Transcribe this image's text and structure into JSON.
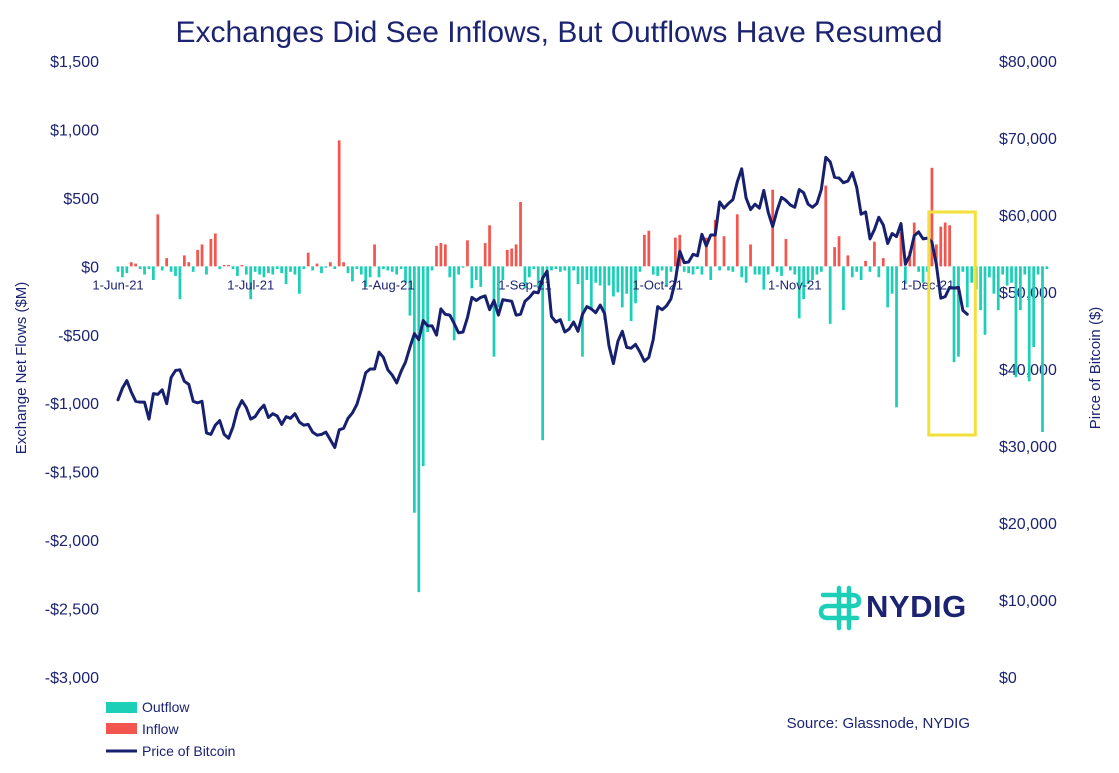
{
  "chart_data": {
    "type": "bar",
    "title": "Exchanges Did See Inflows, But Outflows Have Resumed",
    "left_axis": {
      "label": "Exchange Net Flows ($M)",
      "range": [
        -3000,
        1500
      ],
      "ticks": [
        {
          "value": 1500,
          "label": "$1,500"
        },
        {
          "value": 1000,
          "label": "$1,000"
        },
        {
          "value": 500,
          "label": "$500"
        },
        {
          "value": 0,
          "label": "$0"
        },
        {
          "value": -500,
          "label": "-$500"
        },
        {
          "value": -1000,
          "label": "-$1,000"
        },
        {
          "value": -1500,
          "label": "-$1,500"
        },
        {
          "value": -2000,
          "label": "-$2,000"
        },
        {
          "value": -2500,
          "label": "-$2,500"
        },
        {
          "value": -3000,
          "label": "-$3,000"
        }
      ]
    },
    "right_axis": {
      "label": "Pirce of Bitcoin ($)",
      "range": [
        0,
        80000
      ],
      "ticks": [
        {
          "value": 80000,
          "label": "$80,000"
        },
        {
          "value": 70000,
          "label": "$70,000"
        },
        {
          "value": 60000,
          "label": "$60,000"
        },
        {
          "value": 50000,
          "label": "$50,000"
        },
        {
          "value": 40000,
          "label": "$40,000"
        },
        {
          "value": 30000,
          "label": "$30,000"
        },
        {
          "value": 20000,
          "label": "$20,000"
        },
        {
          "value": 10000,
          "label": "$10,000"
        },
        {
          "value": 0,
          "label": "$0"
        }
      ]
    },
    "x_axis": {
      "start_date": "2021-06-01",
      "end_date": "2021-12-14",
      "ticks": [
        {
          "date": "2021-06-01",
          "label": "1-Jun-21"
        },
        {
          "date": "2021-07-01",
          "label": "1-Jul-21"
        },
        {
          "date": "2021-08-01",
          "label": "1-Aug-21"
        },
        {
          "date": "2021-09-01",
          "label": "1-Sep-21"
        },
        {
          "date": "2021-10-01",
          "label": "1-Oct-21"
        },
        {
          "date": "2021-11-01",
          "label": "1-Nov-21"
        },
        {
          "date": "2021-12-01",
          "label": "1-Dec-21"
        }
      ]
    },
    "flows_start_date": "2021-06-01",
    "net_flows": [
      -40,
      -80,
      -50,
      30,
      20,
      -20,
      -60,
      -20,
      -100,
      380,
      -30,
      60,
      -40,
      -70,
      -240,
      80,
      30,
      -40,
      120,
      160,
      -60,
      200,
      240,
      -20,
      10,
      10,
      -20,
      -70,
      10,
      -60,
      -240,
      -40,
      -60,
      -80,
      -50,
      -60,
      -20,
      -50,
      -130,
      -40,
      -60,
      -200,
      -20,
      100,
      -30,
      20,
      -50,
      -10,
      30,
      -20,
      920,
      30,
      -50,
      -110,
      -20,
      -60,
      -150,
      -80,
      160,
      -80,
      -20,
      -30,
      -40,
      -60,
      -20,
      -120,
      -360,
      -1800,
      -2380,
      -1460,
      -480,
      -30,
      150,
      170,
      160,
      -80,
      -540,
      -60,
      -10,
      190,
      -160,
      -100,
      -150,
      170,
      300,
      -660,
      -300,
      -100,
      120,
      130,
      160,
      470,
      -160,
      -80,
      -20,
      -160,
      -1270,
      -100,
      -30,
      -20,
      -40,
      -30,
      -400,
      -30,
      -130,
      -660,
      -100,
      -320,
      -120,
      -140,
      -390,
      -140,
      -220,
      -190,
      -300,
      -200,
      -400,
      -270,
      -40,
      -80,
      -70,
      -60,
      -70,
      -30,
      -100,
      -40,
      210,
      230,
      -40,
      -50,
      -60,
      -20,
      -60,
      -90,
      -100,
      -60,
      -30,
      -80,
      -30,
      -40,
      -30,
      -80,
      -120,
      -20,
      -60,
      -60,
      -170,
      -60,
      -80,
      -40,
      -70,
      -100,
      -30,
      -60,
      -380,
      -240,
      -130,
      -100,
      -60,
      -40,
      -80,
      -420,
      -120,
      -60,
      -320,
      -160,
      -80,
      -40,
      -100,
      -150,
      -40,
      -180,
      -80,
      -280,
      -300,
      -200,
      -1030,
      -80,
      -130,
      -100,
      -300,
      -40,
      -120,
      -40,
      -60,
      -40,
      -180,
      -150,
      -120,
      -700,
      -660,
      -40,
      -300,
      -120,
      -170,
      -320,
      -500,
      -80,
      -200,
      -320,
      -60,
      -140,
      -120,
      -810,
      -320,
      -60,
      -840,
      -590,
      -60,
      -1210,
      -20
    ],
    "flow_overrides": [
      {
        "date": "2021-09-28",
        "value": 230
      },
      {
        "date": "2021-09-29",
        "value": 260
      },
      {
        "date": "2021-10-03",
        "value": -140
      },
      {
        "date": "2021-10-12",
        "value": 210
      },
      {
        "date": "2021-10-14",
        "value": 340
      },
      {
        "date": "2021-10-16",
        "value": 220
      },
      {
        "date": "2021-10-19",
        "value": 380
      },
      {
        "date": "2021-10-22",
        "value": 160
      },
      {
        "date": "2021-10-27",
        "value": 560
      },
      {
        "date": "2021-10-30",
        "value": 200
      },
      {
        "date": "2021-11-08",
        "value": 590
      },
      {
        "date": "2021-11-10",
        "value": 140
      },
      {
        "date": "2021-11-11",
        "value": 220
      },
      {
        "date": "2021-11-13",
        "value": 80
      },
      {
        "date": "2021-11-17",
        "value": 40
      },
      {
        "date": "2021-11-19",
        "value": 180
      },
      {
        "date": "2021-11-21",
        "value": 60
      },
      {
        "date": "2021-11-25",
        "value": 250
      },
      {
        "date": "2021-11-27",
        "value": 110
      },
      {
        "date": "2021-11-28",
        "value": 320
      },
      {
        "date": "2021-12-02",
        "value": 720
      },
      {
        "date": "2021-12-03",
        "value": 160
      },
      {
        "date": "2021-12-04",
        "value": 290
      },
      {
        "date": "2021-12-05",
        "value": 320
      },
      {
        "date": "2021-12-06",
        "value": 300
      }
    ],
    "price": [
      [
        "2021-06-01",
        36000
      ],
      [
        "2021-06-02",
        37500
      ],
      [
        "2021-06-03",
        38500
      ],
      [
        "2021-06-04",
        37000
      ],
      [
        "2021-06-05",
        35800
      ],
      [
        "2021-06-06",
        35700
      ],
      [
        "2021-06-07",
        35700
      ],
      [
        "2021-06-08",
        33500
      ],
      [
        "2021-06-09",
        36800
      ],
      [
        "2021-06-10",
        36700
      ],
      [
        "2021-06-11",
        37300
      ],
      [
        "2021-06-12",
        35500
      ],
      [
        "2021-06-13",
        38900
      ],
      [
        "2021-06-14",
        39800
      ],
      [
        "2021-06-15",
        39900
      ],
      [
        "2021-06-16",
        38400
      ],
      [
        "2021-06-17",
        38000
      ],
      [
        "2021-06-18",
        35800
      ],
      [
        "2021-06-19",
        35600
      ],
      [
        "2021-06-20",
        35800
      ],
      [
        "2021-06-21",
        31700
      ],
      [
        "2021-06-22",
        31500
      ],
      [
        "2021-06-23",
        32700
      ],
      [
        "2021-06-24",
        33300
      ],
      [
        "2021-06-25",
        31500
      ],
      [
        "2021-06-26",
        31000
      ],
      [
        "2021-06-27",
        32500
      ],
      [
        "2021-06-28",
        34700
      ],
      [
        "2021-06-29",
        35900
      ],
      [
        "2021-06-30",
        35000
      ],
      [
        "2021-07-01",
        33500
      ],
      [
        "2021-07-02",
        33800
      ],
      [
        "2021-07-03",
        34700
      ],
      [
        "2021-07-04",
        35300
      ],
      [
        "2021-07-05",
        33700
      ],
      [
        "2021-07-06",
        34200
      ],
      [
        "2021-07-07",
        33900
      ],
      [
        "2021-07-08",
        32800
      ],
      [
        "2021-07-09",
        33800
      ],
      [
        "2021-07-10",
        33600
      ],
      [
        "2021-07-11",
        34200
      ],
      [
        "2021-07-12",
        33100
      ],
      [
        "2021-07-13",
        32700
      ],
      [
        "2021-07-14",
        32800
      ],
      [
        "2021-07-15",
        31800
      ],
      [
        "2021-07-16",
        31400
      ],
      [
        "2021-07-17",
        31500
      ],
      [
        "2021-07-18",
        31800
      ],
      [
        "2021-07-19",
        30800
      ],
      [
        "2021-07-20",
        29800
      ],
      [
        "2021-07-21",
        32100
      ],
      [
        "2021-07-22",
        32300
      ],
      [
        "2021-07-23",
        33600
      ],
      [
        "2021-07-24",
        34300
      ],
      [
        "2021-07-25",
        35400
      ],
      [
        "2021-07-26",
        37300
      ],
      [
        "2021-07-27",
        39500
      ],
      [
        "2021-07-28",
        40000
      ],
      [
        "2021-07-29",
        40000
      ],
      [
        "2021-07-30",
        42200
      ],
      [
        "2021-07-31",
        41500
      ],
      [
        "2021-08-01",
        39900
      ],
      [
        "2021-08-02",
        39200
      ],
      [
        "2021-08-03",
        38200
      ],
      [
        "2021-08-04",
        39700
      ],
      [
        "2021-08-05",
        40900
      ],
      [
        "2021-08-06",
        42800
      ],
      [
        "2021-08-07",
        44600
      ],
      [
        "2021-08-08",
        43800
      ],
      [
        "2021-08-09",
        46300
      ],
      [
        "2021-08-10",
        45600
      ],
      [
        "2021-08-11",
        45600
      ],
      [
        "2021-08-12",
        44400
      ],
      [
        "2021-08-13",
        47800
      ],
      [
        "2021-08-14",
        47100
      ],
      [
        "2021-08-15",
        47000
      ],
      [
        "2021-08-16",
        45900
      ],
      [
        "2021-08-17",
        44700
      ],
      [
        "2021-08-18",
        44800
      ],
      [
        "2021-08-19",
        46700
      ],
      [
        "2021-08-20",
        49300
      ],
      [
        "2021-08-21",
        48900
      ],
      [
        "2021-08-22",
        49300
      ],
      [
        "2021-08-23",
        49500
      ],
      [
        "2021-08-24",
        47700
      ],
      [
        "2021-08-25",
        48900
      ],
      [
        "2021-08-26",
        47000
      ],
      [
        "2021-08-27",
        49000
      ],
      [
        "2021-08-28",
        48900
      ],
      [
        "2021-08-29",
        48800
      ],
      [
        "2021-08-30",
        47000
      ],
      [
        "2021-08-31",
        47100
      ],
      [
        "2021-09-01",
        48800
      ],
      [
        "2021-09-02",
        49300
      ],
      [
        "2021-09-03",
        50000
      ],
      [
        "2021-09-04",
        49900
      ],
      [
        "2021-09-05",
        51800
      ],
      [
        "2021-09-06",
        52700
      ],
      [
        "2021-09-07",
        46800
      ],
      [
        "2021-09-08",
        46100
      ],
      [
        "2021-09-09",
        46400
      ],
      [
        "2021-09-10",
        44800
      ],
      [
        "2021-09-11",
        45200
      ],
      [
        "2021-09-12",
        46100
      ],
      [
        "2021-09-13",
        44900
      ],
      [
        "2021-09-14",
        47100
      ],
      [
        "2021-09-15",
        48100
      ],
      [
        "2021-09-16",
        47800
      ],
      [
        "2021-09-17",
        47300
      ],
      [
        "2021-09-18",
        48300
      ],
      [
        "2021-09-19",
        47200
      ],
      [
        "2021-09-20",
        43000
      ],
      [
        "2021-09-21",
        40700
      ],
      [
        "2021-09-22",
        43600
      ],
      [
        "2021-09-23",
        44900
      ],
      [
        "2021-09-24",
        42800
      ],
      [
        "2021-09-25",
        42700
      ],
      [
        "2021-09-26",
        43200
      ],
      [
        "2021-09-27",
        42200
      ],
      [
        "2021-09-28",
        41000
      ],
      [
        "2021-09-29",
        41500
      ],
      [
        "2021-09-30",
        43800
      ],
      [
        "2021-10-01",
        48100
      ],
      [
        "2021-10-02",
        47700
      ],
      [
        "2021-10-03",
        48200
      ],
      [
        "2021-10-04",
        49100
      ],
      [
        "2021-10-05",
        51500
      ],
      [
        "2021-10-06",
        55300
      ],
      [
        "2021-10-07",
        53800
      ],
      [
        "2021-10-08",
        53900
      ],
      [
        "2021-10-09",
        54900
      ],
      [
        "2021-10-10",
        54700
      ],
      [
        "2021-10-11",
        57500
      ],
      [
        "2021-10-12",
        56000
      ],
      [
        "2021-10-13",
        57400
      ],
      [
        "2021-10-14",
        57400
      ],
      [
        "2021-10-15",
        61700
      ],
      [
        "2021-10-16",
        60900
      ],
      [
        "2021-10-17",
        61500
      ],
      [
        "2021-10-18",
        62000
      ],
      [
        "2021-10-19",
        64300
      ],
      [
        "2021-10-20",
        66000
      ],
      [
        "2021-10-21",
        62200
      ],
      [
        "2021-10-22",
        60700
      ],
      [
        "2021-10-23",
        61400
      ],
      [
        "2021-10-24",
        60900
      ],
      [
        "2021-10-25",
        63200
      ],
      [
        "2021-10-26",
        60300
      ],
      [
        "2021-10-27",
        58500
      ],
      [
        "2021-10-28",
        60600
      ],
      [
        "2021-10-29",
        62300
      ],
      [
        "2021-10-30",
        61900
      ],
      [
        "2021-10-31",
        61300
      ],
      [
        "2021-11-01",
        61000
      ],
      [
        "2021-11-02",
        63300
      ],
      [
        "2021-11-03",
        62900
      ],
      [
        "2021-11-04",
        61400
      ],
      [
        "2021-11-05",
        61000
      ],
      [
        "2021-11-06",
        61500
      ],
      [
        "2021-11-07",
        63300
      ],
      [
        "2021-11-08",
        67500
      ],
      [
        "2021-11-09",
        66900
      ],
      [
        "2021-11-10",
        64900
      ],
      [
        "2021-11-11",
        64800
      ],
      [
        "2021-11-12",
        64200
      ],
      [
        "2021-11-13",
        64400
      ],
      [
        "2021-11-14",
        65500
      ],
      [
        "2021-11-15",
        63600
      ],
      [
        "2021-11-16",
        60100
      ],
      [
        "2021-11-17",
        60400
      ],
      [
        "2021-11-18",
        56900
      ],
      [
        "2021-11-19",
        58100
      ],
      [
        "2021-11-20",
        59700
      ],
      [
        "2021-11-21",
        58700
      ],
      [
        "2021-11-22",
        56300
      ],
      [
        "2021-11-23",
        57600
      ],
      [
        "2021-11-24",
        57200
      ],
      [
        "2021-11-25",
        58900
      ],
      [
        "2021-11-26",
        53600
      ],
      [
        "2021-11-27",
        54800
      ],
      [
        "2021-11-28",
        57300
      ],
      [
        "2021-11-29",
        57800
      ],
      [
        "2021-11-30",
        56900
      ],
      [
        "2021-12-01",
        57000
      ],
      [
        "2021-12-02",
        56500
      ],
      [
        "2021-12-03",
        53600
      ],
      [
        "2021-12-04",
        49200
      ],
      [
        "2021-12-05",
        49400
      ],
      [
        "2021-12-06",
        50600
      ],
      [
        "2021-12-07",
        50500
      ],
      [
        "2021-12-08",
        50600
      ],
      [
        "2021-12-09",
        47600
      ],
      [
        "2021-12-10",
        47100
      ]
    ],
    "series": [
      {
        "name": "Outflow",
        "color": "#1dcfb7"
      },
      {
        "name": "Inflow",
        "color": "#f2564f"
      },
      {
        "name": "Price of Bitcoin",
        "color": "#16206e"
      }
    ],
    "grid": false,
    "legend_position": "bottom-left",
    "highlight_box": {
      "from": "2021-12-04",
      "to": "2021-12-10",
      "color": "#f3e03a"
    },
    "source": "Source: Glassnode, NYDIG",
    "logo": "NYDIG",
    "logo_color": "#1dcfb7"
  }
}
